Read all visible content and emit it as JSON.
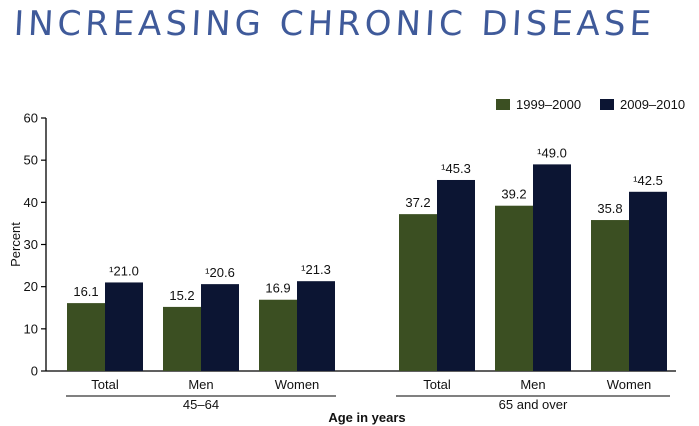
{
  "headline": "INCREASING CHRONIC DISEASE",
  "colors": {
    "series1": "#3b4f22",
    "series2": "#0c1533",
    "axis": "#000000",
    "headline": "#3f5a9a"
  },
  "chart_data": {
    "type": "bar",
    "xlabel": "Age in years",
    "ylabel": "Percent",
    "ylim": [
      0,
      60
    ],
    "yticks": [
      0,
      10,
      20,
      30,
      40,
      50,
      60
    ],
    "grid": false,
    "legend_position": "top-right",
    "series_marker": "¹",
    "groups": [
      {
        "label": "45–64",
        "categories": [
          "Total",
          "Men",
          "Women"
        ]
      },
      {
        "label": "65 and over",
        "categories": [
          "Total",
          "Men",
          "Women"
        ]
      }
    ],
    "categories": [
      "Total",
      "Men",
      "Women",
      "Total",
      "Men",
      "Women"
    ],
    "series": [
      {
        "name": "1999–2000",
        "values": [
          16.1,
          15.2,
          16.9,
          37.2,
          39.2,
          35.8
        ],
        "labels": [
          "16.1",
          "15.2",
          "16.9",
          "37.2",
          "39.2",
          "35.8"
        ]
      },
      {
        "name": "2009–2010",
        "values": [
          21.0,
          20.6,
          21.3,
          45.3,
          49.0,
          42.5
        ],
        "labels": [
          "¹21.0",
          "¹20.6",
          "¹21.3",
          "¹45.3",
          "¹49.0",
          "¹42.5"
        ]
      }
    ]
  }
}
